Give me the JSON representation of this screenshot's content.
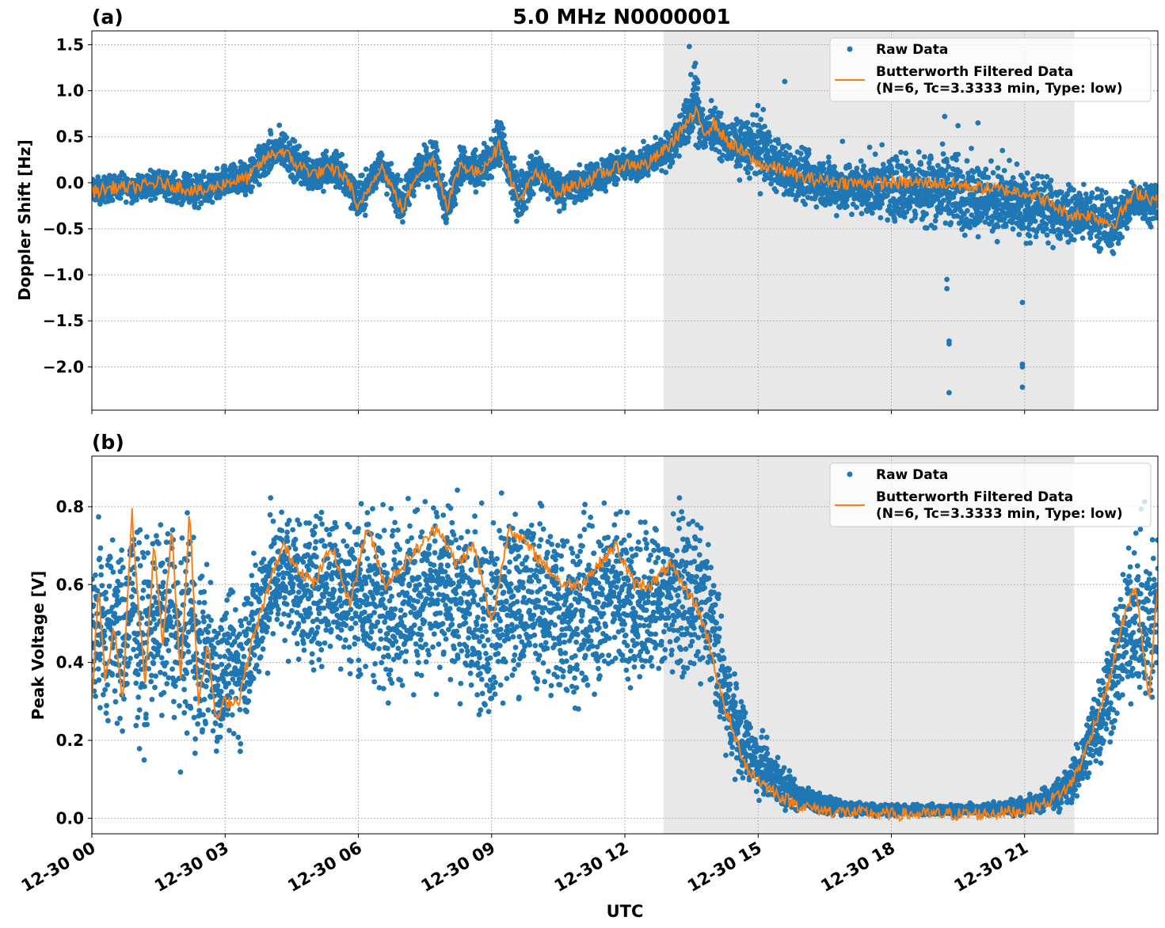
{
  "figure": {
    "title": "5.0 MHz N0000001",
    "shared_xlabel": "UTC",
    "x_ticks": [
      "12-30 00",
      "12-30 03",
      "12-30 06",
      "12-30 09",
      "12-30 12",
      "12-30 15",
      "12-30 18",
      "12-30 21"
    ],
    "x_range_hours": [
      0,
      24
    ],
    "shaded_interval_hours": [
      12.87,
      22.12
    ],
    "colors": {
      "raw": "#1f77b4",
      "filtered": "#ff7f0e",
      "shade": "#e8e8e8",
      "grid": "#b0b0b0"
    }
  },
  "chart_data": [
    {
      "type": "scatter",
      "panel_label": "(a)",
      "ylabel": "Doppler Shift [Hz]",
      "ylim": [
        -2.47,
        1.65
      ],
      "y_ticks": [
        1.5,
        1.0,
        0.5,
        0.0,
        -0.5,
        -1.0,
        -1.5,
        -2.0
      ],
      "y_tick_labels": [
        "1.5",
        "1.0",
        "0.5",
        "0.0",
        "−0.5",
        "−1.0",
        "−1.5",
        "−2.0"
      ],
      "grid": true,
      "legend_position": "top-right",
      "legend": [
        "Raw Data",
        "Butterworth Filtered Data",
        "(N=6, Tc=3.3333 min, Type: low)"
      ],
      "series": [
        {
          "name": "Butterworth Filtered Data",
          "x_hours": [
            0,
            0.5,
            1,
            1.5,
            2,
            2.5,
            3,
            3.5,
            4,
            4.3,
            4.6,
            5,
            5.5,
            5.8,
            6,
            6.5,
            7,
            7.3,
            7.7,
            8,
            8.3,
            8.7,
            9,
            9.2,
            9.6,
            10,
            10.5,
            11,
            11.5,
            12,
            12.5,
            13,
            13.3,
            13.6,
            13.8,
            14,
            14.3,
            14.6,
            15,
            15.5,
            16,
            17,
            18,
            19,
            20,
            21,
            21.5,
            22,
            22.5,
            23,
            23.5,
            24
          ],
          "values": [
            -0.1,
            -0.05,
            -0.05,
            0.0,
            -0.05,
            -0.1,
            0.0,
            0.05,
            0.3,
            0.35,
            0.2,
            0.1,
            0.15,
            0.0,
            -0.3,
            0.2,
            -0.3,
            0.1,
            0.25,
            -0.25,
            0.2,
            0.1,
            0.3,
            0.4,
            -0.2,
            0.1,
            -0.1,
            0.0,
            0.1,
            0.2,
            0.2,
            0.4,
            0.6,
            0.75,
            0.55,
            0.65,
            0.45,
            0.35,
            0.2,
            0.15,
            0.05,
            0.0,
            0.0,
            0.0,
            -0.05,
            -0.1,
            -0.2,
            -0.35,
            -0.35,
            -0.45,
            -0.1,
            -0.2
          ]
        },
        {
          "name": "Raw Data",
          "envelope_upper": [
            0.1,
            0.15,
            0.15,
            0.2,
            0.15,
            0.15,
            0.25,
            0.35,
            0.6,
            0.7,
            0.5,
            0.4,
            0.45,
            0.3,
            0.1,
            0.45,
            0.05,
            0.4,
            0.6,
            0.1,
            0.5,
            0.4,
            0.55,
            0.85,
            0.2,
            0.45,
            0.2,
            0.25,
            0.35,
            0.4,
            0.5,
            0.65,
            0.9,
            1.45,
            0.9,
            0.95,
            0.75,
            0.8,
            0.95,
            0.55,
            0.45,
            0.35,
            0.45,
            0.55,
            0.4,
            0.25,
            0.15,
            0.1,
            0.05,
            0.0,
            0.15,
            0.1
          ],
          "envelope_lower": [
            -0.3,
            -0.25,
            -0.25,
            -0.2,
            -0.3,
            -0.35,
            -0.25,
            -0.25,
            0.0,
            0.05,
            -0.1,
            -0.2,
            -0.15,
            -0.3,
            -0.55,
            -0.05,
            -0.55,
            -0.15,
            -0.05,
            -0.65,
            -0.1,
            -0.2,
            0.0,
            0.05,
            -0.55,
            -0.15,
            -0.35,
            -0.3,
            -0.15,
            -0.05,
            -0.05,
            0.1,
            0.25,
            0.3,
            0.15,
            0.3,
            0.1,
            0.0,
            -0.15,
            -0.25,
            -0.35,
            -0.45,
            -0.55,
            -0.65,
            -0.7,
            -0.8,
            -0.75,
            -0.75,
            -0.8,
            -0.9,
            -0.5,
            -0.5
          ],
          "outliers": [
            [
              19.25,
              -1.05
            ],
            [
              19.25,
              -1.15
            ],
            [
              19.3,
              -1.72
            ],
            [
              19.3,
              -1.75
            ],
            [
              19.3,
              -2.28
            ],
            [
              20.95,
              -1.3
            ],
            [
              20.95,
              -1.97
            ],
            [
              20.95,
              -2.0
            ],
            [
              20.95,
              -2.22
            ],
            [
              19.2,
              0.72
            ],
            [
              19.5,
              0.62
            ],
            [
              19.95,
              0.65
            ],
            [
              20.5,
              0.35
            ],
            [
              16.9,
              0.45
            ],
            [
              15.6,
              1.1
            ],
            [
              13.45,
              1.48
            ]
          ]
        }
      ]
    },
    {
      "type": "scatter",
      "panel_label": "(b)",
      "ylabel": "Peak Voltage [V]",
      "ylim": [
        -0.04,
        0.93
      ],
      "y_ticks": [
        0.0,
        0.2,
        0.4,
        0.6,
        0.8
      ],
      "y_tick_labels": [
        "0.0",
        "0.2",
        "0.4",
        "0.6",
        "0.8"
      ],
      "grid": true,
      "legend_position": "top-right",
      "legend": [
        "Raw Data",
        "Butterworth Filtered Data",
        "(N=6, Tc=3.3333 min, Type: low)"
      ],
      "series": [
        {
          "name": "Butterworth Filtered Data",
          "x_hours": [
            0,
            0.15,
            0.3,
            0.5,
            0.7,
            0.9,
            1.0,
            1.2,
            1.4,
            1.6,
            1.8,
            2.0,
            2.2,
            2.4,
            2.6,
            2.8,
            3.0,
            3.3,
            3.6,
            4.0,
            4.3,
            4.6,
            5.0,
            5.4,
            5.8,
            6.2,
            6.6,
            7.0,
            7.4,
            7.8,
            8.2,
            8.6,
            9.0,
            9.4,
            9.8,
            10.2,
            10.6,
            11.0,
            11.4,
            11.8,
            12.2,
            12.6,
            13.0,
            13.3,
            13.6,
            13.9,
            14.2,
            14.5,
            14.8,
            15.2,
            15.6,
            16.0,
            16.5,
            17.0,
            18.0,
            19.0,
            20.0,
            21.0,
            21.5,
            22.0,
            22.3,
            22.6,
            22.9,
            23.2,
            23.5,
            23.8,
            24.0
          ],
          "values": [
            0.3,
            0.6,
            0.35,
            0.5,
            0.3,
            0.8,
            0.6,
            0.35,
            0.7,
            0.45,
            0.75,
            0.35,
            0.8,
            0.3,
            0.45,
            0.25,
            0.3,
            0.3,
            0.45,
            0.6,
            0.7,
            0.65,
            0.6,
            0.7,
            0.55,
            0.75,
            0.6,
            0.65,
            0.7,
            0.75,
            0.65,
            0.7,
            0.5,
            0.75,
            0.7,
            0.65,
            0.6,
            0.6,
            0.65,
            0.7,
            0.6,
            0.6,
            0.65,
            0.6,
            0.55,
            0.45,
            0.3,
            0.2,
            0.12,
            0.08,
            0.05,
            0.03,
            0.02,
            0.015,
            0.01,
            0.01,
            0.01,
            0.02,
            0.04,
            0.08,
            0.15,
            0.25,
            0.35,
            0.5,
            0.6,
            0.3,
            0.6
          ]
        },
        {
          "name": "Raw Data",
          "envelope_upper": [
            0.75,
            0.87,
            0.8,
            0.85,
            0.78,
            0.88,
            0.85,
            0.8,
            0.88,
            0.82,
            0.87,
            0.75,
            0.88,
            0.7,
            0.75,
            0.6,
            0.65,
            0.65,
            0.75,
            0.85,
            0.87,
            0.86,
            0.85,
            0.87,
            0.86,
            0.88,
            0.87,
            0.87,
            0.87,
            0.88,
            0.87,
            0.88,
            0.86,
            0.88,
            0.88,
            0.87,
            0.86,
            0.86,
            0.87,
            0.88,
            0.86,
            0.86,
            0.86,
            0.85,
            0.82,
            0.8,
            0.55,
            0.4,
            0.3,
            0.22,
            0.15,
            0.1,
            0.07,
            0.05,
            0.04,
            0.04,
            0.04,
            0.06,
            0.09,
            0.15,
            0.25,
            0.4,
            0.55,
            0.7,
            0.82,
            0.85,
            0.87
          ],
          "envelope_lower": [
            0.15,
            0.2,
            0.1,
            0.15,
            0.1,
            0.2,
            0.15,
            0.1,
            0.2,
            0.15,
            0.2,
            0.1,
            0.15,
            0.08,
            0.12,
            0.1,
            0.12,
            0.12,
            0.2,
            0.35,
            0.4,
            0.35,
            0.3,
            0.35,
            0.3,
            0.3,
            0.25,
            0.25,
            0.25,
            0.3,
            0.25,
            0.2,
            0.15,
            0.25,
            0.25,
            0.25,
            0.2,
            0.2,
            0.25,
            0.3,
            0.25,
            0.25,
            0.3,
            0.3,
            0.3,
            0.25,
            0.12,
            0.08,
            0.04,
            0.02,
            0.01,
            0.005,
            0.003,
            0.002,
            0.002,
            0.002,
            0.002,
            0.003,
            0.005,
            0.01,
            0.04,
            0.08,
            0.12,
            0.2,
            0.25,
            0.12,
            0.2
          ]
        }
      ]
    }
  ]
}
